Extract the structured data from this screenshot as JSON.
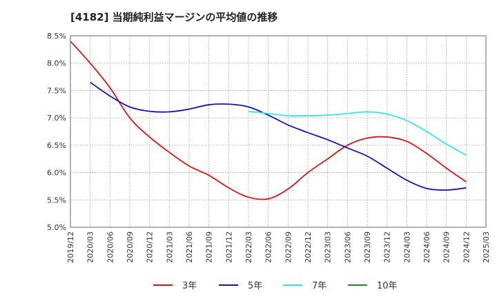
{
  "chart_data": {
    "type": "line",
    "title": "[4182]  当期純利益マージンの平均値の推移",
    "xlabel": "",
    "ylabel": "",
    "ylim": [
      5.0,
      8.5
    ],
    "y_ticks": [
      "5.0%",
      "5.5%",
      "6.0%",
      "6.5%",
      "7.0%",
      "7.5%",
      "8.0%",
      "8.5%"
    ],
    "x_ticks": [
      "2019/12",
      "2020/03",
      "2020/06",
      "2020/09",
      "2020/12",
      "2021/03",
      "2021/06",
      "2021/09",
      "2021/12",
      "2022/03",
      "2022/06",
      "2022/09",
      "2022/12",
      "2023/03",
      "2023/06",
      "2023/09",
      "2023/12",
      "2024/03",
      "2024/06",
      "2024/09",
      "2024/12",
      "2025/03"
    ],
    "grid": true,
    "legend_position": "bottom",
    "series": [
      {
        "name": "3年",
        "color": "#dd1111",
        "x": [
          "2019/12",
          "2020/03",
          "2020/06",
          "2020/09",
          "2020/12",
          "2021/03",
          "2021/06",
          "2021/09",
          "2021/12",
          "2022/03",
          "2022/06",
          "2022/09",
          "2022/12",
          "2023/03",
          "2023/06",
          "2023/09",
          "2023/12",
          "2024/03",
          "2024/06",
          "2024/09",
          "2024/12"
        ],
        "values": [
          8.4,
          8.0,
          7.55,
          7.0,
          6.65,
          6.37,
          6.12,
          5.95,
          5.72,
          5.55,
          5.52,
          5.7,
          6.0,
          6.25,
          6.5,
          6.63,
          6.65,
          6.57,
          6.35,
          6.08,
          5.83
        ]
      },
      {
        "name": "5年",
        "color": "#1111cc",
        "x": [
          "2020/03",
          "2020/06",
          "2020/09",
          "2020/12",
          "2021/03",
          "2021/06",
          "2021/09",
          "2021/12",
          "2022/03",
          "2022/06",
          "2022/09",
          "2022/12",
          "2023/03",
          "2023/06",
          "2023/09",
          "2023/12",
          "2024/03",
          "2024/06",
          "2024/09",
          "2024/12"
        ],
        "values": [
          7.65,
          7.4,
          7.2,
          7.12,
          7.11,
          7.16,
          7.24,
          7.25,
          7.2,
          7.05,
          6.87,
          6.73,
          6.6,
          6.45,
          6.3,
          6.08,
          5.86,
          5.71,
          5.68,
          5.72
        ]
      },
      {
        "name": "7年",
        "color": "#33e6ee",
        "x": [
          "2022/03",
          "2022/06",
          "2022/09",
          "2022/12",
          "2023/03",
          "2023/06",
          "2023/09",
          "2023/12",
          "2024/03",
          "2024/06",
          "2024/09",
          "2024/12"
        ],
        "values": [
          7.12,
          7.08,
          7.04,
          7.04,
          7.05,
          7.08,
          7.11,
          7.07,
          6.95,
          6.75,
          6.52,
          6.32
        ]
      },
      {
        "name": "10年",
        "color": "#228822",
        "x": [],
        "values": []
      }
    ]
  }
}
